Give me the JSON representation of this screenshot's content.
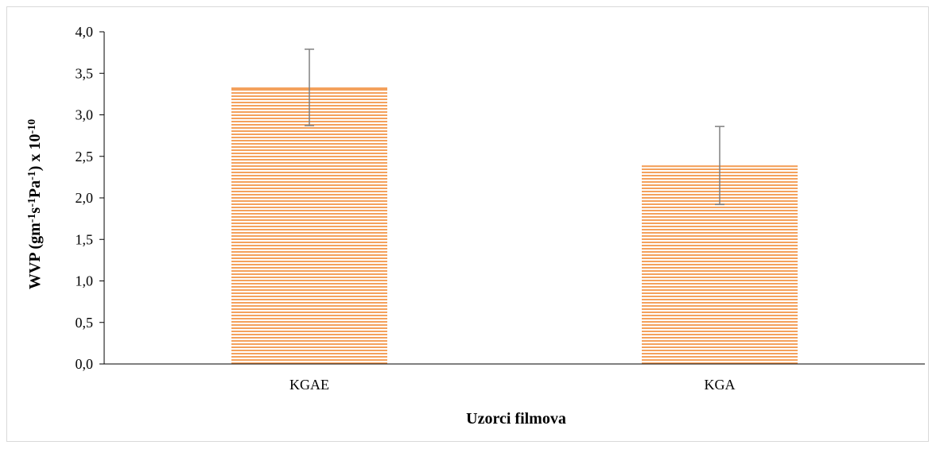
{
  "chart_data": {
    "type": "bar",
    "title": "",
    "xlabel": "Uzorci filmova",
    "ylabel": {
      "parts": [
        {
          "text": "WVP (gm",
          "sup": false
        },
        {
          "text": "-1",
          "sup": true
        },
        {
          "text": "s",
          "sup": false
        },
        {
          "text": "-1",
          "sup": true
        },
        {
          "text": "Pa",
          "sup": false
        },
        {
          "text": "-1",
          "sup": true
        },
        {
          "text": ") x 10",
          "sup": false
        },
        {
          "text": "-10",
          "sup": true
        }
      ]
    },
    "categories": [
      "KGAE",
      "KGA"
    ],
    "values": [
      3.33,
      2.39
    ],
    "error_bars": [
      0.46,
      0.47
    ],
    "ylim": [
      0,
      4
    ],
    "yticks": [
      "0,0",
      "0,5",
      "1,0",
      "1,5",
      "2,0",
      "2,5",
      "3,0",
      "3,5",
      "4,0"
    ],
    "ytick_values": [
      0,
      0.5,
      1,
      1.5,
      2,
      2.5,
      3,
      3.5,
      4
    ],
    "grid": false,
    "legend": "none",
    "colors": {
      "bar_stripe": "#f4a15c",
      "bar_gap": "#ffffff",
      "error_bar": "#808080",
      "axis": "#000000"
    }
  }
}
